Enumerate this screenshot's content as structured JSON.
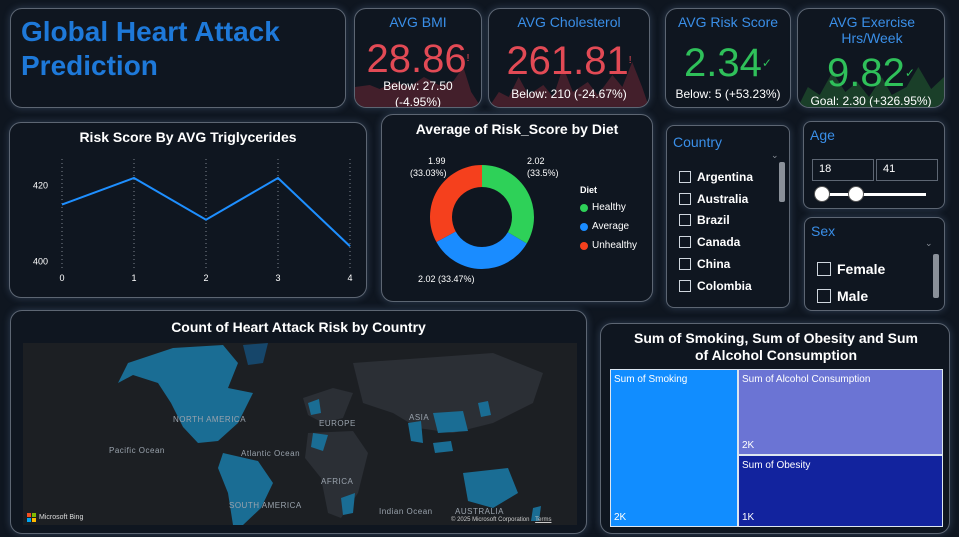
{
  "app_title": "Global Heart Attack Prediction",
  "kpis": {
    "bmi": {
      "title": "AVG BMI",
      "value": "28.86",
      "goal_text": "Below: 27.50",
      "goal_delta": "(-4.95%)",
      "mark": "!"
    },
    "cholesterol": {
      "title": "AVG Cholesterol",
      "value": "261.81",
      "goal_text": "Below: 210 (-24.67%)",
      "mark": "!"
    },
    "risk": {
      "title": "AVG Risk Score",
      "value": "2.34",
      "goal_text": "Below: 5 (+53.23%)",
      "mark": "✓"
    },
    "exercise": {
      "title": "AVG Exercise Hrs/Week",
      "value": "9.82",
      "goal_text": "Goal: 2.30 (+326.95%)",
      "mark": "✓"
    }
  },
  "colors": {
    "accent": "#3a8fe8",
    "bad": "#e24a55",
    "good": "#2fc05a",
    "line": "#1e8fff"
  },
  "line_chart": {
    "title": "Risk Score By AVG Triglycerides",
    "chart_data": {
      "type": "line",
      "x": [
        0,
        1,
        2,
        3,
        4
      ],
      "values": [
        415,
        422,
        411,
        422,
        404
      ],
      "ylim": [
        398,
        427
      ],
      "yticks": [
        400,
        420
      ],
      "grid": "vertical dotted"
    }
  },
  "donut_chart": {
    "title": "Average of Risk_Score by Diet",
    "legend_title": "Diet",
    "chart_data": {
      "type": "pie",
      "categories": [
        "Healthy",
        "Average",
        "Unhealthy"
      ],
      "values": [
        2.02,
        2.02,
        1.99
      ],
      "percent": [
        "33.5%",
        "33.47%",
        "33.03%"
      ],
      "colors": [
        "#2ed158",
        "#1a8cff",
        "#f5401d"
      ]
    },
    "labels": {
      "healthy_val": "2.02",
      "healthy_pct": "(33.5%)",
      "unhealthy_val": "1.99",
      "unhealthy_pct": "(33.03%)",
      "average_label": "2.02 (33.47%)"
    }
  },
  "country_slicer": {
    "title": "Country",
    "items": [
      "Argentina",
      "Australia",
      "Brazil",
      "Canada",
      "China",
      "Colombia"
    ]
  },
  "age_slicer": {
    "title": "Age",
    "min": "18",
    "max": "41"
  },
  "sex_slicer": {
    "title": "Sex",
    "items": [
      "Female",
      "Male"
    ]
  },
  "map": {
    "title": "Count of Heart Attack Risk by Country",
    "labels": {
      "north_america": "NORTH AMERICA",
      "europe": "EUROPE",
      "asia": "ASIA",
      "africa": "AFRICA",
      "south_america": "SOUTH AMERICA",
      "australia": "AUSTRALIA",
      "pacific": "Pacific Ocean",
      "atlantic": "Atlantic Ocean",
      "indian": "Indian Ocean"
    },
    "attribution": "Microsoft Bing",
    "copyright": "© 2025 Microsoft Corporation",
    "terms": "Terms"
  },
  "treemap": {
    "title": "Sum of Smoking, Sum of Obesity and Sum of Alcohol Consumption",
    "chart_data": {
      "type": "treemap",
      "categories": [
        "Sum of Smoking",
        "Sum of Alcohol Consumption",
        "Sum of Obesity"
      ],
      "values": [
        "2K",
        "2K",
        "1K"
      ],
      "colors": [
        "#118dff",
        "#6b74d4",
        "#12239e"
      ]
    }
  }
}
